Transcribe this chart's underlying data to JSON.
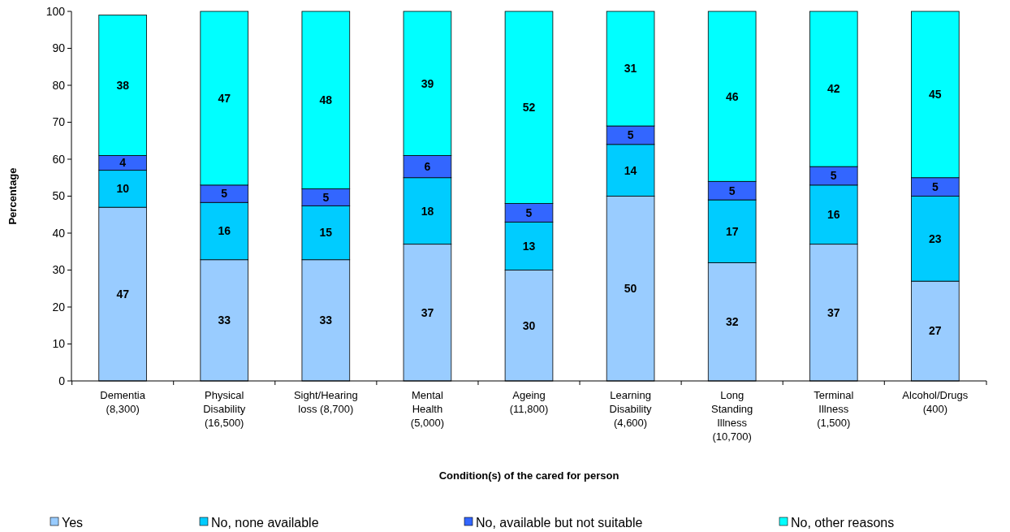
{
  "chart_data": {
    "type": "bar",
    "stacked": true,
    "xlabel": "Condition(s) of the cared for person",
    "ylabel": "Percentage",
    "categories": [
      "Dementia (8,300)",
      "Physical Disability (16,500)",
      "Sight/Hearing loss (8,700)",
      "Mental Health (5,000)",
      "Ageing (11,800)",
      "Learning Disability (4,600)",
      "Long Standing Illness (10,700)",
      "Terminal Illness (1,500)",
      "Alcohol/Drugs (400)"
    ],
    "series": [
      {
        "name": "Yes",
        "color": "#99ccff",
        "values": [
          47,
          32.8,
          32.8,
          37,
          30,
          50,
          32,
          37,
          27
        ],
        "value_labels": [
          "47",
          "33",
          "33",
          "37",
          "30",
          "50",
          "32",
          "37",
          "27"
        ]
      },
      {
        "name": "No, none available",
        "color": "#00ccff",
        "values": [
          10,
          15.5,
          14.6,
          18,
          13,
          14,
          17,
          16,
          23
        ],
        "value_labels": [
          "10",
          "16",
          "15",
          "18",
          "13",
          "14",
          "17",
          "16",
          "23"
        ]
      },
      {
        "name": "No, available but not suitable",
        "color": "#3366ff",
        "values": [
          4,
          4.7,
          4.6,
          6,
          5,
          5,
          5,
          5,
          5
        ],
        "value_labels": [
          "4",
          "5",
          "5",
          "6",
          "5",
          "5",
          "5",
          "5",
          "5"
        ]
      },
      {
        "name": "No, other reasons",
        "color": "#00ffff",
        "values": [
          38,
          47,
          48,
          39,
          52,
          31,
          46,
          42,
          45
        ],
        "value_labels": [
          "38",
          "47",
          "48",
          "39",
          "52",
          "31",
          "46",
          "42",
          "45"
        ]
      }
    ],
    "ylim": [
      0,
      100
    ],
    "yticks": [
      0,
      10,
      20,
      30,
      40,
      50,
      60,
      70,
      80,
      90,
      100
    ],
    "legend": "bottom"
  }
}
